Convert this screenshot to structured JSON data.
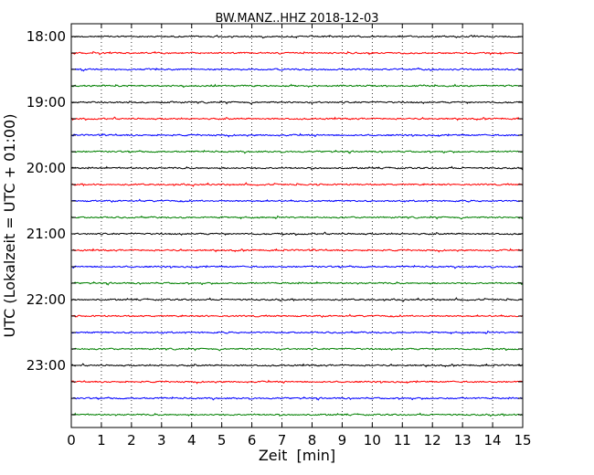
{
  "chart_data": {
    "type": "line",
    "title": "BW.MANZ..HHZ 2018-12-03",
    "xlabel": "Zeit  [min]",
    "ylabel": "UTC (Lokalzeit = UTC + 01:00)",
    "xlim": [
      0,
      15
    ],
    "x_ticks": [
      "0",
      "1",
      "2",
      "3",
      "4",
      "5",
      "6",
      "7",
      "8",
      "9",
      "10",
      "11",
      "12",
      "13",
      "14",
      "15"
    ],
    "y_tick_labels": [
      "18:00",
      "19:00",
      "20:00",
      "21:00",
      "22:00",
      "23:00"
    ],
    "grid": "vertical-dotted",
    "trace_colors": [
      "#000000",
      "#ff0000",
      "#0000ff",
      "#008000"
    ],
    "series": [
      {
        "start": "18:00"
      },
      {
        "start": "18:15"
      },
      {
        "start": "18:30"
      },
      {
        "start": "18:45"
      },
      {
        "start": "19:00"
      },
      {
        "start": "19:15"
      },
      {
        "start": "19:30"
      },
      {
        "start": "19:45"
      },
      {
        "start": "20:00"
      },
      {
        "start": "20:15"
      },
      {
        "start": "20:30"
      },
      {
        "start": "20:45"
      },
      {
        "start": "21:00"
      },
      {
        "start": "21:15"
      },
      {
        "start": "21:30"
      },
      {
        "start": "21:45"
      },
      {
        "start": "22:00"
      },
      {
        "start": "22:15"
      },
      {
        "start": "22:30"
      },
      {
        "start": "22:45"
      },
      {
        "start": "23:00"
      },
      {
        "start": "23:15"
      },
      {
        "start": "23:30"
      },
      {
        "start": "23:45"
      }
    ]
  }
}
